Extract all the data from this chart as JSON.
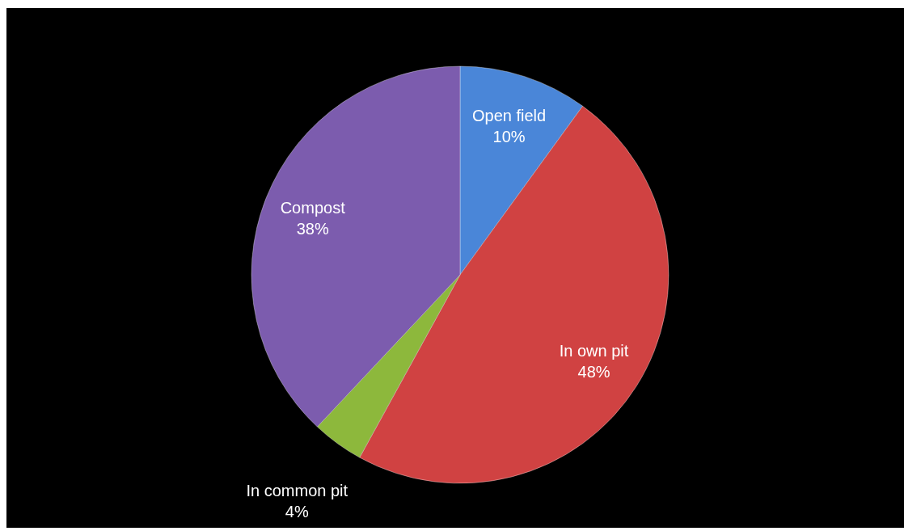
{
  "chart_data": {
    "type": "pie",
    "categories": [
      "Open field",
      "In own pit",
      "In common pit",
      "Compost"
    ],
    "values": [
      10,
      48,
      4,
      38
    ],
    "colors": [
      "#4a86d8",
      "#d04242",
      "#8db83c",
      "#7c5cae"
    ],
    "value_labels": [
      "10%",
      "48%",
      "4%",
      "38%"
    ]
  }
}
